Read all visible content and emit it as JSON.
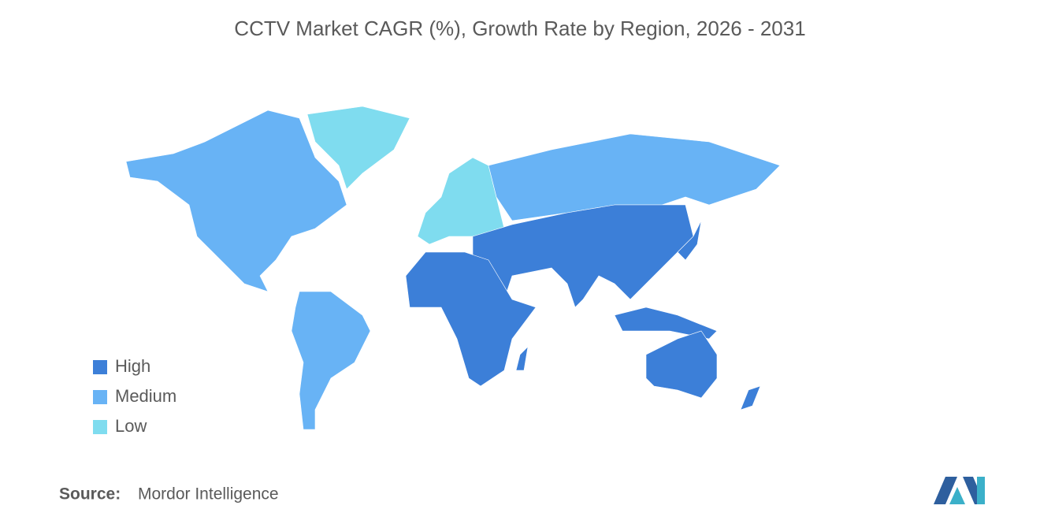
{
  "title": "CCTV Market CAGR (%), Growth Rate by Region, 2026 - 2031",
  "legend": {
    "items": [
      {
        "label": "High",
        "color": "#3c7fd8"
      },
      {
        "label": "Medium",
        "color": "#68b3f5"
      },
      {
        "label": "Low",
        "color": "#7fdcef"
      }
    ]
  },
  "source": {
    "label": "Source:",
    "text": "Mordor Intelligence"
  }
}
